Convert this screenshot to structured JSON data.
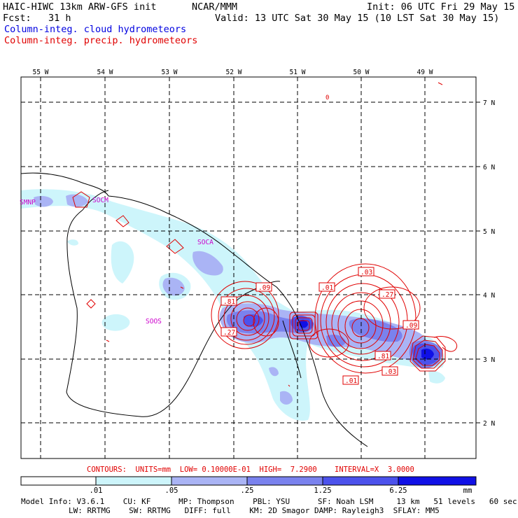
{
  "header": {
    "title": "HAIC-HIWC 13km ARW-GFS init",
    "org": "NCAR/MMM",
    "fcst": "Fcst:   31 h",
    "init": "Init: 06 UTC Fri 29 May 15",
    "valid": "Valid: 13 UTC Sat 30 May 15 (10 LST Sat 30 May 15)",
    "field_cloud": "Column-integ. cloud hydrometeors",
    "field_precip": "Column-integ. precip. hydrometeors"
  },
  "colors": {
    "cloud_legend": "#0000e0",
    "precip_legend": "#e00000",
    "shade_levels": [
      "#ffffff",
      "#cdf5fb",
      "#aab4f5",
      "#7a82ee",
      "#4c52ec",
      "#1010e6"
    ]
  },
  "map": {
    "lon_labels": [
      "55 W",
      "54 W",
      "53 W",
      "52 W",
      "51 W",
      "50 W",
      "49 W"
    ],
    "lat_labels": [
      "7 N",
      "6 N",
      "5 N",
      "4 N",
      "3 N",
      "2 N"
    ],
    "station_labels": [
      "SMNP",
      "SOCM",
      "SOCA",
      "SOOS"
    ],
    "contour_labels": [
      ".09",
      ".81",
      ".27",
      ".01",
      ".03",
      ".27",
      ".09",
      ".81",
      ".03",
      ".01",
      "0"
    ]
  },
  "contours_info": "CONTOURS:  UNITS=mm  LOW= 0.10000E-01  HIGH=  7.2900    INTERVAL=X  3.0000",
  "colorbar": {
    "ticks": [
      ".01",
      ".05",
      ".25",
      "1.25",
      "6.25"
    ],
    "unit": "mm"
  },
  "footer": {
    "line1": "Model Info: V3.6.1    CU: KF      MP: Thompson    PBL: YSU      SF: Noah LSM     13 km   51 levels   60 sec",
    "line2": "LW: RRTMG    SW: RRTMG   DIFF: full    KM: 2D Smagor DAMP: Rayleigh3  SFLAY: MM5"
  }
}
